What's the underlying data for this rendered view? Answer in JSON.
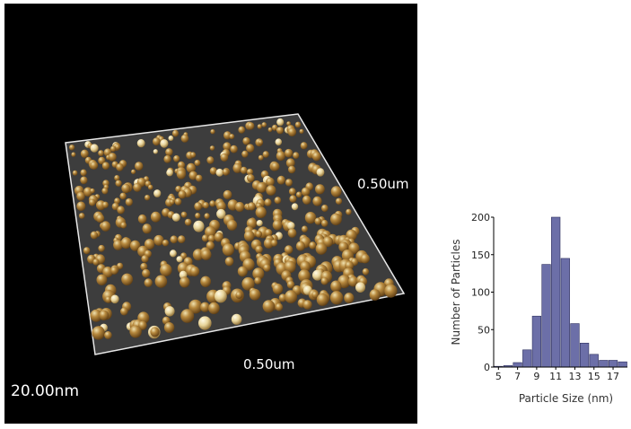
{
  "afm_image": {
    "z_scale_label": "20.00nm",
    "x_scale_label": "0.50um",
    "y_scale_label": "0.50um",
    "colors": {
      "background": "#000000",
      "particle_light": "#f0e2b0",
      "particle_mid": "#b7893e",
      "particle_dark": "#5a3a12",
      "substrate": "#c8c8c8"
    }
  },
  "chart_data": {
    "type": "bar",
    "xlabel": "Particle Size (nm)",
    "ylabel": "Number of Particles",
    "x_tick_labels": [
      "5",
      "7",
      "9",
      "11",
      "13",
      "15",
      "17"
    ],
    "y_tick_labels": [
      "0",
      "50",
      "100",
      "150",
      "200"
    ],
    "xlim": [
      4.5,
      18.5
    ],
    "ylim": [
      0,
      200
    ],
    "bins": [
      5,
      6,
      7,
      8,
      9,
      10,
      11,
      12,
      13,
      14,
      15,
      16,
      17,
      18
    ],
    "values": [
      1,
      2,
      6,
      23,
      68,
      137,
      200,
      145,
      58,
      32,
      17,
      9,
      9,
      7
    ],
    "bar_color": "#6c6fa8"
  }
}
